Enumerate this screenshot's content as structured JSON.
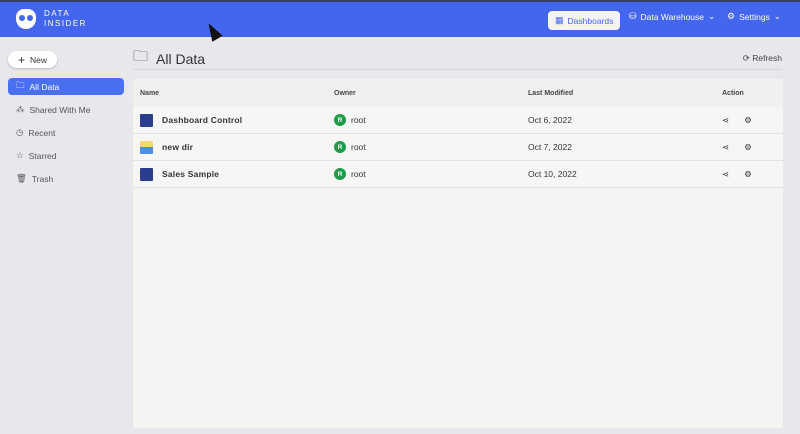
{
  "app": {
    "logo_line1": "DATA",
    "logo_line2": "INSIDER"
  },
  "topnav": {
    "dashboards": "Dashboards",
    "warehouse": "Data Warehouse",
    "settings": "Settings"
  },
  "sidebar": {
    "new": "New",
    "items": [
      {
        "label": "All Data",
        "icon": "folder-icon"
      },
      {
        "label": "Shared With Me",
        "icon": "share-nodes-icon"
      },
      {
        "label": "Recent",
        "icon": "clock-icon"
      },
      {
        "label": "Starred",
        "icon": "star-icon"
      },
      {
        "label": "Trash",
        "icon": "trash-icon"
      }
    ]
  },
  "main": {
    "title": "All Data",
    "refresh": "Refresh",
    "columns": [
      "Name",
      "Owner",
      "Last Modified",
      "Action"
    ],
    "rows": [
      {
        "name": "Dashboard Control",
        "type": "dashboard",
        "owner": "root",
        "avatar": "R",
        "modified": "Oct 6, 2022"
      },
      {
        "name": "new dir",
        "type": "folder",
        "owner": "root",
        "avatar": "R",
        "modified": "Oct 7, 2022"
      },
      {
        "name": "Sales Sample",
        "type": "dashboard",
        "owner": "root",
        "avatar": "R",
        "modified": "Oct 10, 2022"
      }
    ]
  },
  "colors": {
    "accent": "#4466ee",
    "avatar": "#1f9b4a"
  }
}
